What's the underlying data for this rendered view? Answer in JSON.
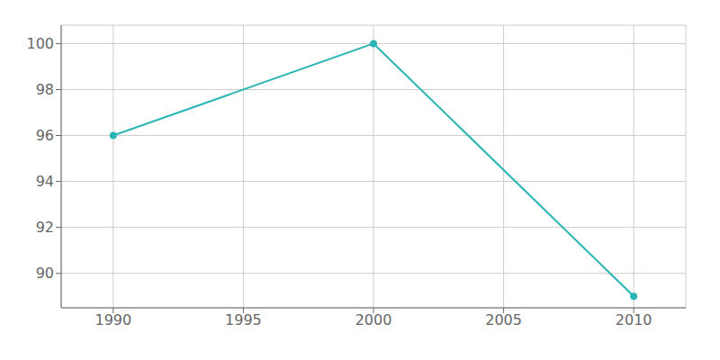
{
  "chart_data": {
    "type": "line",
    "x": [
      1990,
      2000,
      2010
    ],
    "values": [
      96,
      100,
      89
    ],
    "color": "#2ab5b5",
    "marker": "o",
    "xlim": [
      1988,
      2012
    ],
    "ylim": [
      88.5,
      100.8
    ],
    "xticks": [
      1990,
      1995,
      2000,
      2005,
      2010
    ],
    "yticks": [
      90,
      92,
      94,
      96,
      98,
      100
    ],
    "grid": true
  }
}
